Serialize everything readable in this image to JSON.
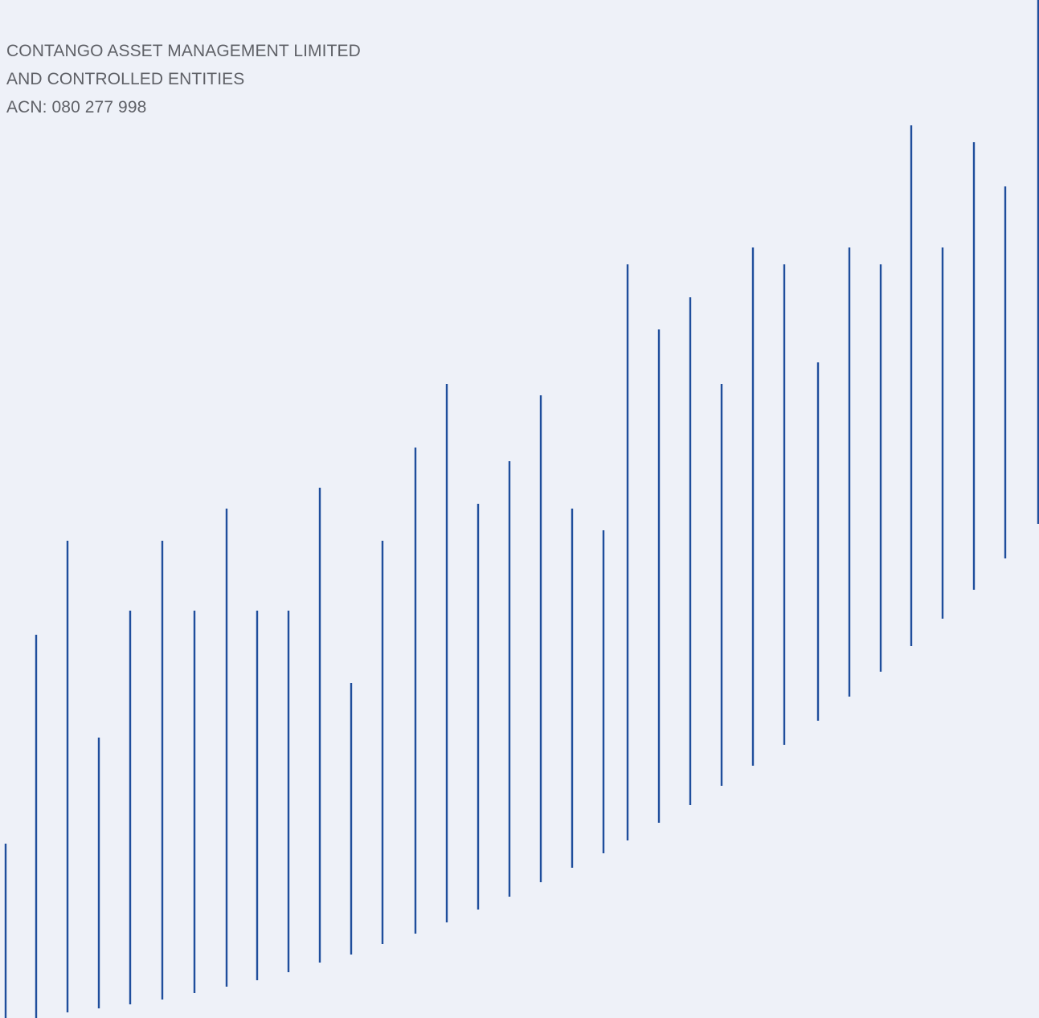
{
  "cover": {
    "company_line_1": "CONTANGO ASSET MANAGEMENT LIMITED",
    "company_line_2": "AND CONTROLLED ENTITIES",
    "acn": "ACN: 080 277 998"
  },
  "decoration": {
    "line_color": "#1f4e9c"
  }
}
